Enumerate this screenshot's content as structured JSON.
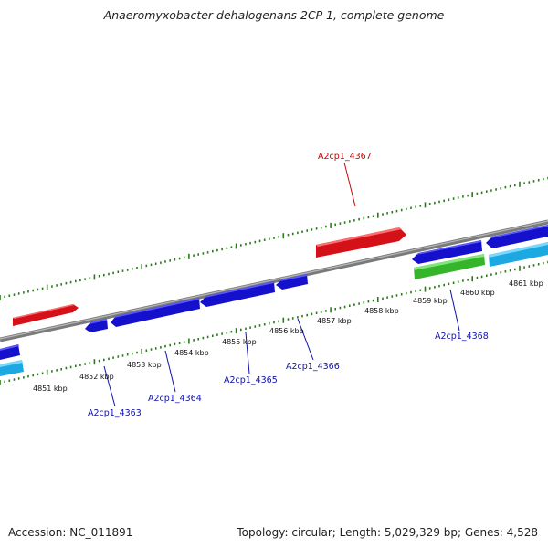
{
  "title": "Anaeromyxobacter dehalogenans 2CP-1, complete genome",
  "accession_text": "Accession: NC_011891",
  "summary_text": "Topology: circular; Length: 5,029,329 bp; Genes: 4,528",
  "colors": {
    "backbone": "#8a8a8a",
    "ticks": "#2a7a1a",
    "forward_gene": "#e8141c",
    "reverse_gene": "#1a12d8",
    "other_gene": "#3cc832",
    "cyan_gene": "#22b4ec",
    "forward_label": "#cc0000",
    "reverse_label": "#1010a8"
  },
  "scale_labels": [
    "4851 kbp",
    "4852 kbp",
    "4853 kbp",
    "4854 kbp",
    "4855 kbp",
    "4856 kbp",
    "4857 kbp",
    "4858 kbp",
    "4859 kbp",
    "4860 kbp",
    "4861 kbp"
  ],
  "gene_labels": {
    "a2cp1_4363": "A2cp1_4363",
    "a2cp1_4364": "A2cp1_4364",
    "a2cp1_4365": "A2cp1_4365",
    "a2cp1_4366": "A2cp1_4366",
    "a2cp1_4367": "A2cp1_4367",
    "a2cp1_4368": "A2cp1_4368"
  }
}
